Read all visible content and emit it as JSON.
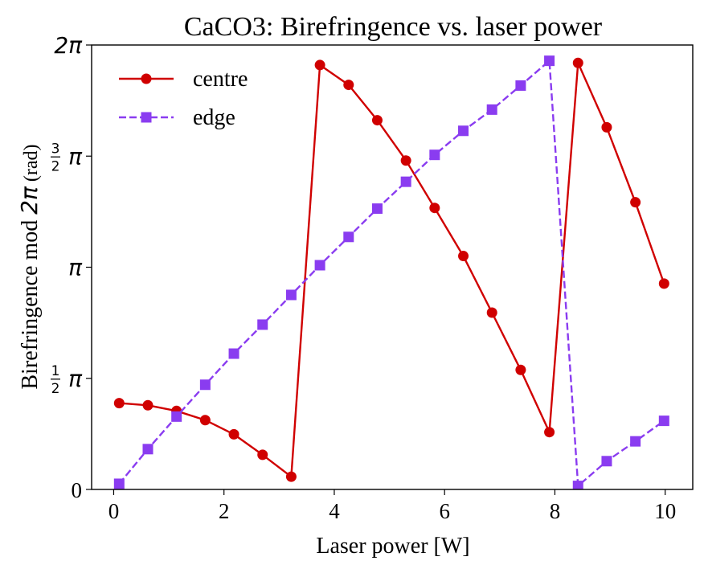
{
  "chart_data": {
    "type": "line",
    "title": "CaCO3: Birefringence vs. laser power",
    "xlabel": "Laser power [W]",
    "ylabel": {
      "prefix": "Birefringence mod ",
      "math": "2π",
      "suffix": " (rad)"
    },
    "xlim": [
      -0.4,
      10.5
    ],
    "ylim": [
      0,
      6.2832
    ],
    "xticks": [
      {
        "value": 0,
        "label": "0"
      },
      {
        "value": 2,
        "label": "2"
      },
      {
        "value": 4,
        "label": "4"
      },
      {
        "value": 6,
        "label": "6"
      },
      {
        "value": 8,
        "label": "8"
      },
      {
        "value": 10,
        "label": "10"
      }
    ],
    "yticks": [
      {
        "value": 0,
        "label": "0",
        "kind": "plain"
      },
      {
        "value": 1.5708,
        "label": "π",
        "kind": "frac",
        "num": "1",
        "den": "2"
      },
      {
        "value": 3.1416,
        "label": "π",
        "kind": "math"
      },
      {
        "value": 4.7124,
        "label": "π",
        "kind": "frac",
        "num": "3",
        "den": "2"
      },
      {
        "value": 6.2832,
        "label": "2π",
        "kind": "math"
      }
    ],
    "legend_position": "top-left",
    "series": [
      {
        "name": "centre",
        "color": "#d00000",
        "marker": "circle",
        "linestyle": "solid",
        "x": [
          0.1,
          0.62,
          1.14,
          1.66,
          2.18,
          2.7,
          3.22,
          3.74,
          4.26,
          4.78,
          5.3,
          5.82,
          6.34,
          6.86,
          7.38,
          7.9,
          8.42,
          8.94,
          9.46,
          9.98
        ],
        "y": [
          1.22,
          1.19,
          1.11,
          0.98,
          0.78,
          0.49,
          0.18,
          6.0,
          5.72,
          5.22,
          4.65,
          3.98,
          3.3,
          2.5,
          1.69,
          0.81,
          6.03,
          5.12,
          4.06,
          2.91
        ]
      },
      {
        "name": "edge",
        "color": "#8a3cf0",
        "marker": "square",
        "linestyle": "dashed",
        "x": [
          0.1,
          0.62,
          1.14,
          1.66,
          2.18,
          2.7,
          3.22,
          3.74,
          4.26,
          4.78,
          5.3,
          5.82,
          6.34,
          6.86,
          7.38,
          7.9,
          8.42,
          8.94,
          9.46,
          9.98
        ],
        "y": [
          0.08,
          0.57,
          1.03,
          1.48,
          1.92,
          2.33,
          2.75,
          3.17,
          3.57,
          3.97,
          4.35,
          4.73,
          5.07,
          5.37,
          5.71,
          6.06,
          0.05,
          0.4,
          0.68,
          0.97
        ]
      }
    ]
  }
}
